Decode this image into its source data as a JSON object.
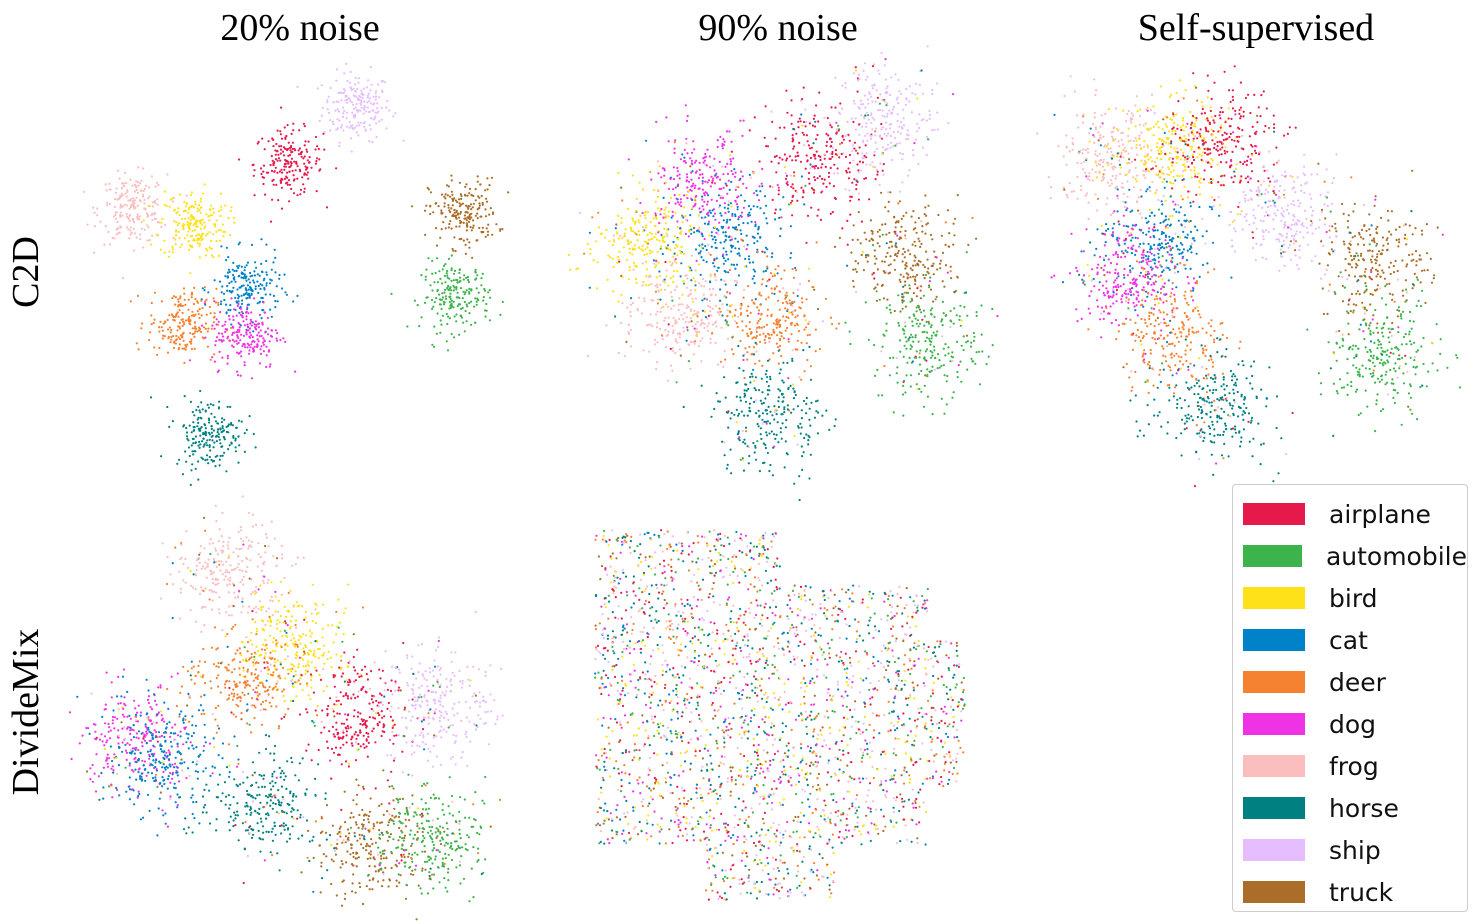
{
  "chart_data": {
    "type": "scatter",
    "columns": [
      "20% noise",
      "90% noise",
      "Self-supervised"
    ],
    "rows": [
      "C2D",
      "DivideMix"
    ],
    "legend": {
      "position": "bottom-right",
      "entries": [
        {
          "name": "airplane",
          "color": "#e6194b"
        },
        {
          "name": "automobile",
          "color": "#3cb44b"
        },
        {
          "name": "bird",
          "color": "#ffe119"
        },
        {
          "name": "cat",
          "color": "#0082c8"
        },
        {
          "name": "deer",
          "color": "#f58231"
        },
        {
          "name": "dog",
          "color": "#f032e6"
        },
        {
          "name": "frog",
          "color": "#fabebe"
        },
        {
          "name": "horse",
          "color": "#008080"
        },
        {
          "name": "ship",
          "color": "#e6beff"
        },
        {
          "name": "truck",
          "color": "#aa6e28"
        }
      ]
    },
    "grid": false,
    "axes": false,
    "panels": [
      {
        "row": "C2D",
        "column": "20% noise",
        "structure": "separated class clusters",
        "clusters": [
          {
            "class": "ship",
            "x": 0.65,
            "y": 0.93
          },
          {
            "class": "airplane",
            "x": 0.47,
            "y": 0.78
          },
          {
            "class": "frog",
            "x": 0.06,
            "y": 0.66
          },
          {
            "class": "bird",
            "x": 0.22,
            "y": 0.62
          },
          {
            "class": "truck",
            "x": 0.93,
            "y": 0.65
          },
          {
            "class": "automobile",
            "x": 0.91,
            "y": 0.43
          },
          {
            "class": "cat",
            "x": 0.36,
            "y": 0.45
          },
          {
            "class": "deer",
            "x": 0.19,
            "y": 0.36
          },
          {
            "class": "dog",
            "x": 0.36,
            "y": 0.33
          },
          {
            "class": "horse",
            "x": 0.26,
            "y": 0.07
          }
        ]
      },
      {
        "row": "C2D",
        "column": "90% noise",
        "structure": "partially overlapping clusters",
        "clusters": [
          {
            "class": "ship",
            "x": 0.78,
            "y": 0.9
          },
          {
            "class": "airplane",
            "x": 0.6,
            "y": 0.8
          },
          {
            "class": "dog",
            "x": 0.3,
            "y": 0.73
          },
          {
            "class": "cat",
            "x": 0.36,
            "y": 0.58
          },
          {
            "class": "bird",
            "x": 0.14,
            "y": 0.57
          },
          {
            "class": "truck",
            "x": 0.83,
            "y": 0.54
          },
          {
            "class": "frog",
            "x": 0.23,
            "y": 0.38
          },
          {
            "class": "deer",
            "x": 0.48,
            "y": 0.37
          },
          {
            "class": "automobile",
            "x": 0.9,
            "y": 0.3
          },
          {
            "class": "horse",
            "x": 0.47,
            "y": 0.11
          }
        ]
      },
      {
        "row": "C2D",
        "column": "Self-supervised",
        "structure": "partially overlapping clusters",
        "clusters": [
          {
            "class": "frog",
            "x": 0.12,
            "y": 0.8
          },
          {
            "class": "bird",
            "x": 0.28,
            "y": 0.82
          },
          {
            "class": "airplane",
            "x": 0.41,
            "y": 0.84
          },
          {
            "class": "ship",
            "x": 0.57,
            "y": 0.65
          },
          {
            "class": "cat",
            "x": 0.23,
            "y": 0.58
          },
          {
            "class": "dog",
            "x": 0.16,
            "y": 0.48
          },
          {
            "class": "truck",
            "x": 0.82,
            "y": 0.52
          },
          {
            "class": "deer",
            "x": 0.28,
            "y": 0.32
          },
          {
            "class": "automobile",
            "x": 0.85,
            "y": 0.27
          },
          {
            "class": "horse",
            "x": 0.39,
            "y": 0.12
          }
        ]
      },
      {
        "row": "DivideMix",
        "column": "20% noise",
        "structure": "connected clusters with moderate mixing",
        "clusters": [
          {
            "class": "frog",
            "x": 0.31,
            "y": 0.88
          },
          {
            "class": "bird",
            "x": 0.48,
            "y": 0.69
          },
          {
            "class": "deer",
            "x": 0.34,
            "y": 0.6
          },
          {
            "class": "airplane",
            "x": 0.66,
            "y": 0.49
          },
          {
            "class": "ship",
            "x": 0.87,
            "y": 0.53
          },
          {
            "class": "dog",
            "x": 0.06,
            "y": 0.43
          },
          {
            "class": "cat",
            "x": 0.14,
            "y": 0.38
          },
          {
            "class": "horse",
            "x": 0.4,
            "y": 0.25
          },
          {
            "class": "truck",
            "x": 0.69,
            "y": 0.14
          },
          {
            "class": "automobile",
            "x": 0.85,
            "y": 0.17
          }
        ]
      },
      {
        "row": "DivideMix",
        "column": "90% noise",
        "structure": "classes uniformly mixed",
        "clusters": []
      }
    ]
  }
}
